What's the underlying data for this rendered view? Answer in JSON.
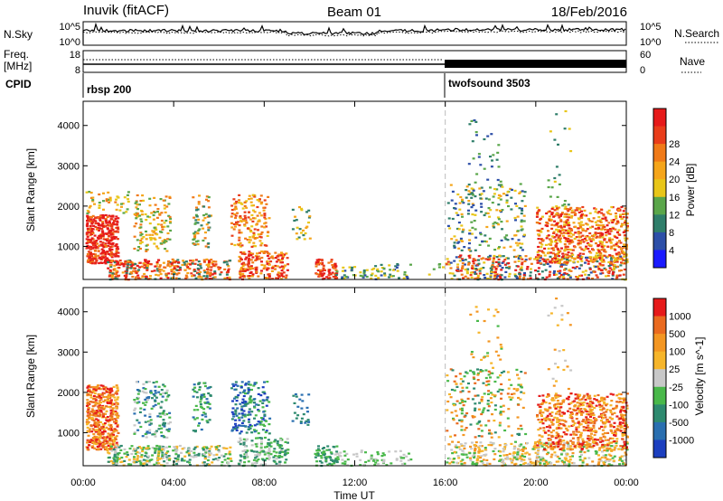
{
  "header": {
    "station": "Inuvik (fitACF)",
    "beam": "Beam 01",
    "date": "18/Feb/2016"
  },
  "panels": {
    "nsky": {
      "left_label": "N.Sky",
      "right_label": "N.Search",
      "ytick_top_left": "10^5",
      "ytick_bottom_left": "10^0",
      "ytick_top_right": "10^5",
      "ytick_bottom_right": "10^0"
    },
    "freq": {
      "left_label_1": "Freq.",
      "left_label_2": "[MHz]",
      "right_label": "Nave",
      "ytick_top_left": "18",
      "ytick_bottom_left": "8",
      "ytick_top_right": "60",
      "ytick_bottom_right": "0"
    },
    "cpid": {
      "label": "CPID",
      "program_1": "rbsp 200",
      "program_2": "twofsound 3503"
    }
  },
  "chart_data": [
    {
      "type": "heatmap",
      "name": "power",
      "ylabel": "Slant Range [km]",
      "yticks": [
        1000,
        2000,
        3000,
        4000
      ],
      "ylim": [
        180,
        4600
      ],
      "colorbar_label": "Power [dB]",
      "colorbar_ticks": [
        "4",
        "8",
        "12",
        "16",
        "20",
        "24",
        "28"
      ],
      "colorbar_colors": [
        "#1a1aff",
        "#2d4fa8",
        "#2f7e6a",
        "#5aa64a",
        "#e8c619",
        "#f5a51a",
        "#f07a18",
        "#e93d1a",
        "#e61a1a"
      ]
    },
    {
      "type": "heatmap",
      "name": "velocity",
      "ylabel": "Slant Range [km]",
      "yticks": [
        1000,
        2000,
        3000,
        4000
      ],
      "ylim": [
        180,
        4600
      ],
      "xlabel": "Time UT",
      "xticks": [
        "00:00",
        "04:00",
        "08:00",
        "12:00",
        "16:00",
        "20:00",
        "00:00"
      ],
      "xlim_hours": [
        0,
        24
      ],
      "colorbar_label": "Velocity [m s^-1]",
      "colorbar_ticks": [
        "1000",
        "500",
        "100",
        "25",
        "-25",
        "-100",
        "-500",
        "-1000"
      ],
      "colorbar_colors": [
        "#1c3fbf",
        "#2a6fb0",
        "#2e8a6f",
        "#49b84a",
        "#c8c8c8",
        "#f6b52a",
        "#f39622",
        "#ea6a1f",
        "#e61a1a"
      ]
    }
  ],
  "markers": {
    "mode_change_hour": 16
  }
}
